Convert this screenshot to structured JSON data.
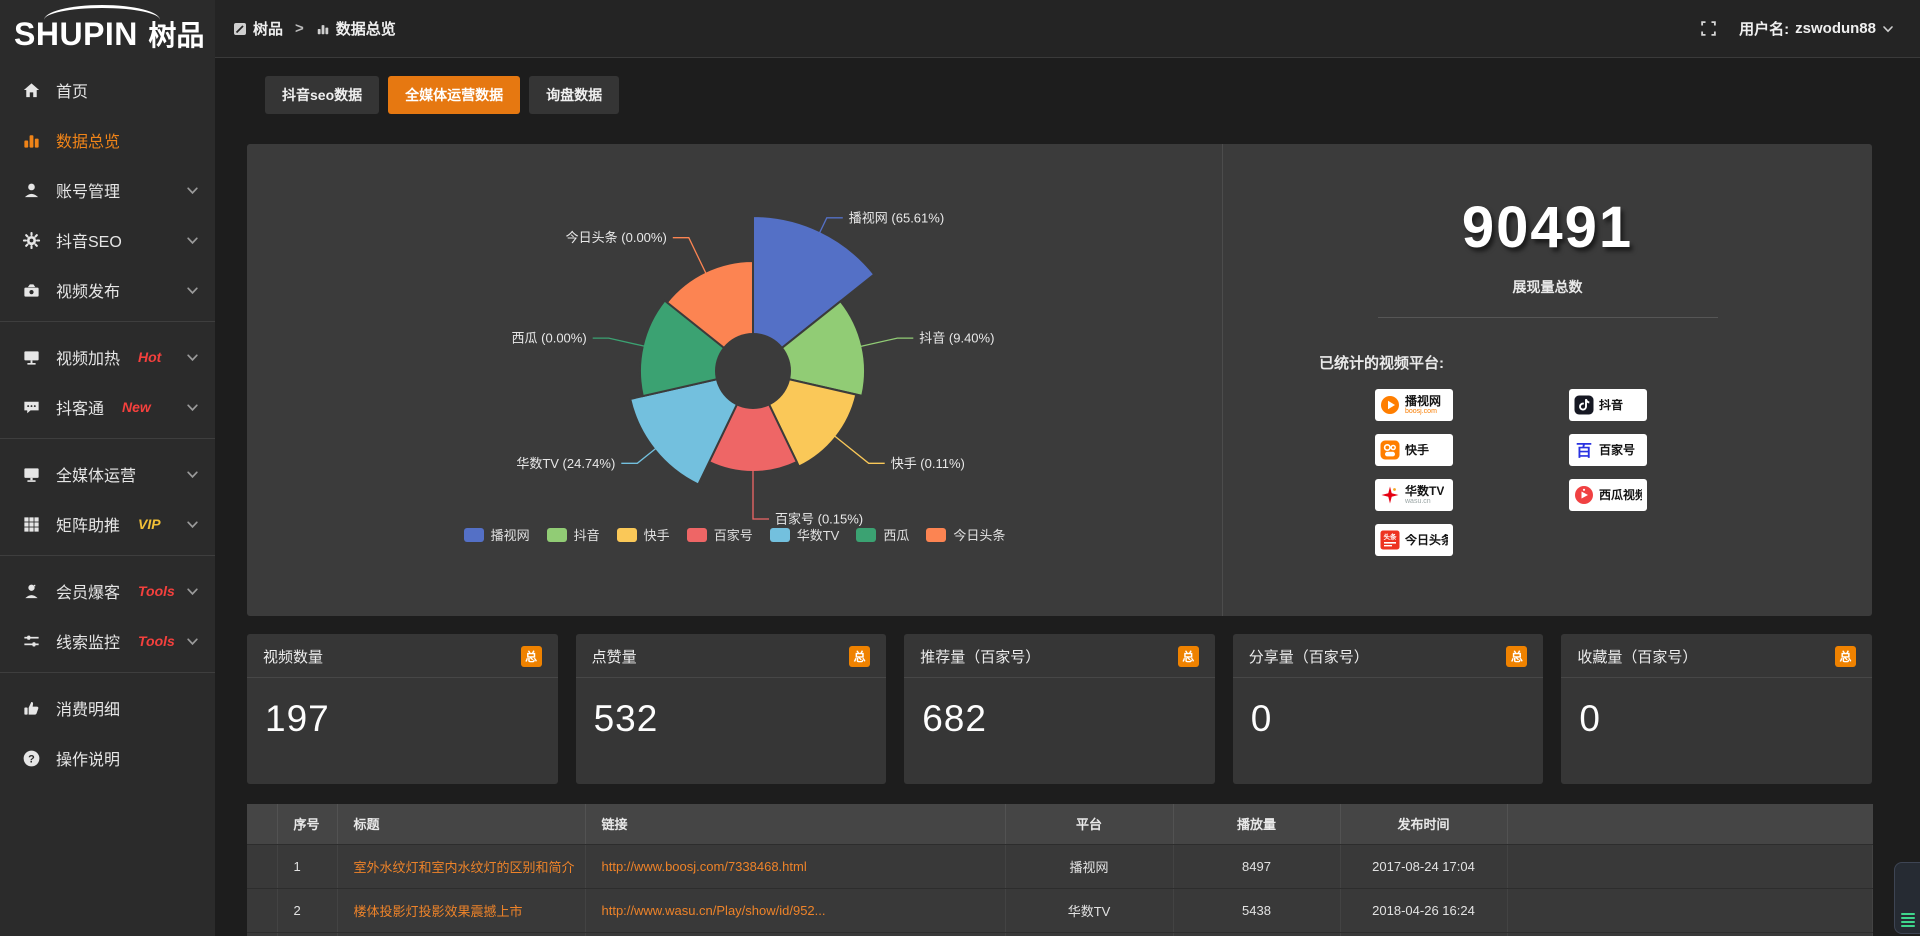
{
  "brand": {
    "logo_en": "SHUPIN",
    "logo_cn": "树品"
  },
  "topbar": {
    "breadcrumb": [
      {
        "key": "shupin",
        "label": "树品",
        "icon": "shupin-icon"
      },
      {
        "key": "data-overview",
        "label": "数据总览",
        "icon": "chart-bar-icon"
      }
    ],
    "separator": ">",
    "user_label": "用户名:",
    "username": "zswodun88"
  },
  "sidebar": {
    "items": [
      {
        "key": "home",
        "label": "首页",
        "icon": "home-icon",
        "active": false,
        "chevron": false
      },
      {
        "key": "data-overview",
        "label": "数据总览",
        "icon": "chart-bar-icon",
        "active": true,
        "chevron": false
      },
      {
        "key": "account-management",
        "label": "账号管理",
        "icon": "user-icon",
        "chevron": true
      },
      {
        "key": "douyin-seo",
        "label": "抖音SEO",
        "icon": "gear-icon",
        "chevron": true
      },
      {
        "key": "video-publish",
        "label": "视频发布",
        "icon": "video-publish-icon",
        "chevron": true,
        "divider_after": true
      },
      {
        "key": "video-heating",
        "label": "视频加热",
        "icon": "screen-icon",
        "tag": "Hot",
        "tag_color": "#f4403d",
        "chevron": true
      },
      {
        "key": "doukertong",
        "label": "抖客通",
        "icon": "chat-icon",
        "tag": "New",
        "tag_color": "#f4403d",
        "chevron": true,
        "divider_after": true
      },
      {
        "key": "omni-media",
        "label": "全媒体运营",
        "icon": "monitor-icon",
        "chevron": true
      },
      {
        "key": "matrix-boost",
        "label": "矩阵助推",
        "icon": "grid-icon",
        "tag": "VIP",
        "tag_color": "#f2c037",
        "chevron": true,
        "divider_after": true
      },
      {
        "key": "member-burst",
        "label": "会员爆客",
        "icon": "member-icon",
        "tag": "Tools",
        "tag_color": "#f4403d",
        "chevron": true
      },
      {
        "key": "lead-monitor",
        "label": "线索监控",
        "icon": "sliders-icon",
        "tag": "Tools",
        "tag_color": "#f4403d",
        "chevron": true,
        "divider_after": true
      },
      {
        "key": "spend-detail",
        "label": "消费明细",
        "icon": "spend-icon",
        "chevron": false
      },
      {
        "key": "help",
        "label": "操作说明",
        "icon": "help-icon",
        "chevron": false
      }
    ]
  },
  "tabs": [
    {
      "key": "douyin-seo-data",
      "label": "抖音seo数据",
      "active": false
    },
    {
      "key": "omni-media-data",
      "label": "全媒体运营数据",
      "active": true
    },
    {
      "key": "inquiry-data",
      "label": "询盘数据",
      "active": false
    }
  ],
  "chart_data": {
    "type": "pie",
    "style": "nightingale-rose",
    "legend_position": "bottom",
    "items": [
      {
        "name": "播视网",
        "pct": 65.61,
        "pct_label": "65.61%",
        "color": "#5470c6",
        "radius_hint": 155
      },
      {
        "name": "抖音",
        "pct": 9.4,
        "pct_label": "9.40%",
        "color": "#91cc75",
        "radius_hint": 112
      },
      {
        "name": "快手",
        "pct": 0.11,
        "pct_label": "0.11%",
        "color": "#fac858",
        "radius_hint": 106
      },
      {
        "name": "百家号",
        "pct": 0.15,
        "pct_label": "0.15%",
        "color": "#ee6666",
        "radius_hint": 101
      },
      {
        "name": "华数TV",
        "pct": 24.74,
        "pct_label": "24.74%",
        "color": "#73c0de",
        "radius_hint": 126
      },
      {
        "name": "西瓜",
        "pct": 0.0,
        "pct_label": "0.00%",
        "color": "#3ba272",
        "radius_hint": 113
      },
      {
        "name": "今日头条",
        "pct": 0.0,
        "pct_label": "0.00%",
        "color": "#fc8452",
        "radius_hint": 110
      }
    ]
  },
  "summary": {
    "total_value": "90491",
    "total_label": "展现量总数",
    "platforms_label": "已统计的视频平台:",
    "platform_columns": [
      [
        {
          "name": "播视网",
          "sub": "boosj.com",
          "sub_color": "#f77c00",
          "logo": "boosj-logo"
        },
        {
          "name": "快手",
          "logo": "kuaishou-logo"
        },
        {
          "name": "华数TV",
          "sub": "wasu.cn",
          "sub_color": "#9aa5a5",
          "logo": "wasu-logo"
        },
        {
          "name": "今日头条",
          "logo": "toutiao-logo"
        }
      ],
      [
        {
          "name": "抖音",
          "logo": "douyin-logo"
        },
        {
          "name": "百家号",
          "logo": "baijiahao-logo"
        },
        {
          "name": "西瓜视频",
          "logo": "xigua-logo"
        }
      ]
    ]
  },
  "stat_cards": [
    {
      "title": "视频数量",
      "badge": "总",
      "value": "197"
    },
    {
      "title": "点赞量",
      "badge": "总",
      "value": "532"
    },
    {
      "title": "推荐量（百家号）",
      "badge": "总",
      "value": "682"
    },
    {
      "title": "分享量（百家号）",
      "badge": "总",
      "value": "0"
    },
    {
      "title": "收藏量（百家号）",
      "badge": "总",
      "value": "0"
    }
  ],
  "table": {
    "headers": [
      "",
      "序号",
      "标题",
      "链接",
      "平台",
      "播放量",
      "发布时间",
      ""
    ],
    "rows": [
      {
        "index": "1",
        "title": "室外水纹灯和室内水纹灯的区别和简介",
        "link": "http://www.boosj.com/7338468.html",
        "platform": "播视网",
        "plays": "8497",
        "time": "2017-08-24 17:04"
      },
      {
        "index": "2",
        "title": "楼体投影灯投影效果震撼上市",
        "link": "http://www.wasu.cn/Play/show/id/952...",
        "platform": "华数TV",
        "plays": "5438",
        "time": "2018-04-26 16:24"
      }
    ]
  },
  "colors": {
    "accent_orange": "#e67811",
    "badge_orange": "#ef8200",
    "link_orange": "#ee8329"
  }
}
